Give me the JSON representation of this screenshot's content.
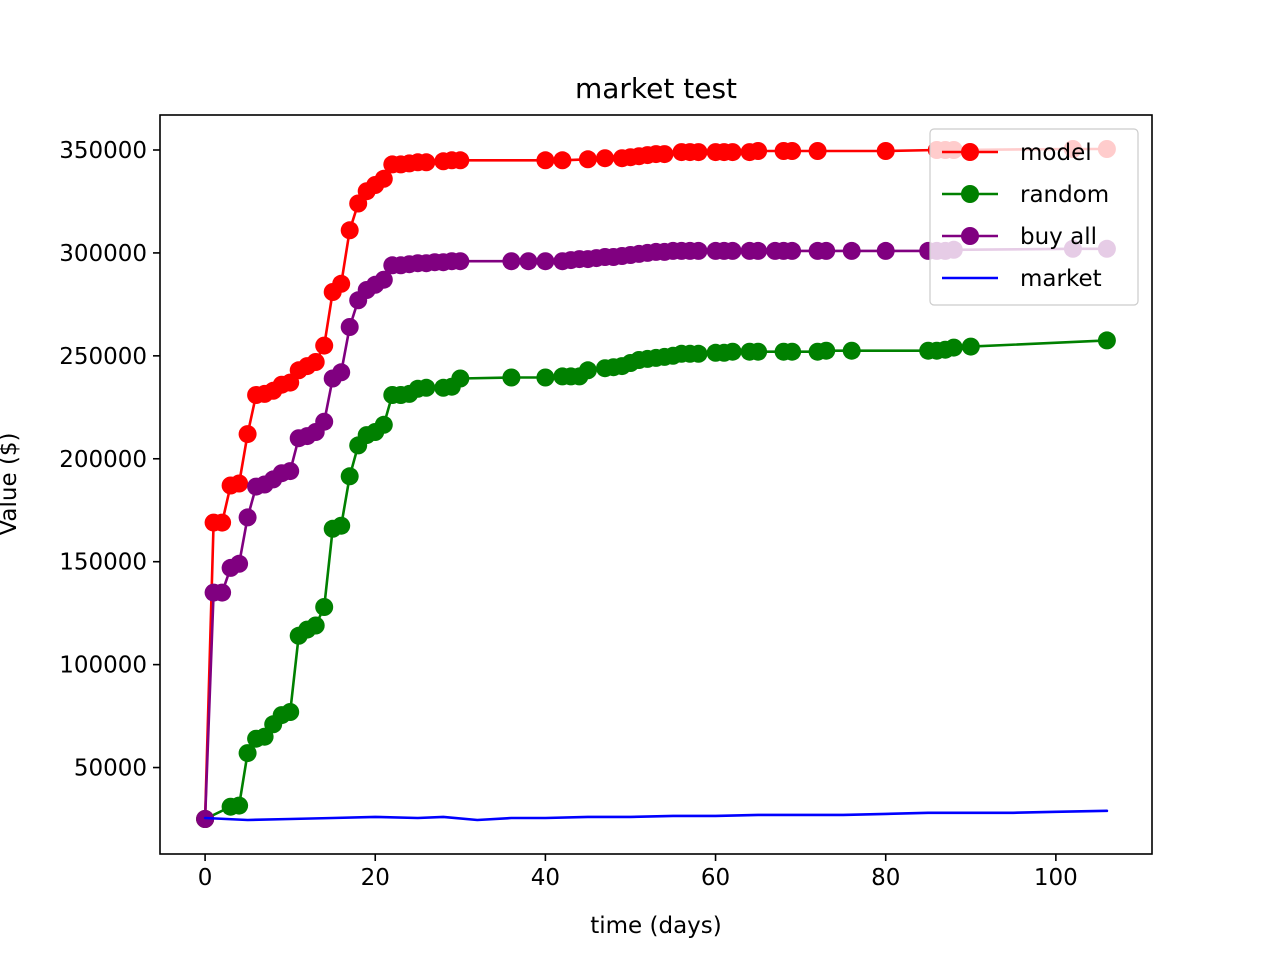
{
  "chart_data": {
    "type": "line",
    "title": "market test",
    "xlabel": "time (days)",
    "ylabel": "Value ($)",
    "xlim": [
      -5.3,
      111.3
    ],
    "ylim": [
      8000,
      367000
    ],
    "xticks": [
      0,
      20,
      40,
      60,
      80,
      100
    ],
    "xtick_labels": [
      "0",
      "20",
      "40",
      "60",
      "80",
      "100"
    ],
    "yticks": [
      50000,
      100000,
      150000,
      200000,
      250000,
      300000,
      350000
    ],
    "ytick_labels": [
      "50000",
      "100000",
      "150000",
      "200000",
      "250000",
      "300000",
      "350000"
    ],
    "grid": false,
    "legend_position": "top-right",
    "series": [
      {
        "name": "model",
        "color": "#ff0000",
        "marker": "circle",
        "x": [
          0,
          1,
          2,
          3,
          4,
          5,
          6,
          7,
          8,
          9,
          10,
          11,
          12,
          13,
          14,
          15,
          16,
          17,
          18,
          19,
          20,
          21,
          22,
          23,
          24,
          25,
          26,
          28,
          29,
          30,
          40,
          42,
          45,
          47,
          49,
          50,
          51,
          52,
          53,
          54,
          56,
          57,
          58,
          60,
          61,
          62,
          64,
          65,
          68,
          69,
          72,
          80,
          86,
          87,
          88,
          102,
          106
        ],
        "y": [
          25000,
          169000,
          169000,
          187000,
          188000,
          212000,
          231000,
          231500,
          233000,
          236000,
          237000,
          243000,
          245000,
          247000,
          255000,
          281000,
          285000,
          311000,
          324000,
          330000,
          333000,
          336000,
          343000,
          343000,
          343500,
          344000,
          344000,
          344500,
          345000,
          345000,
          345000,
          345000,
          345500,
          346000,
          346000,
          346500,
          347000,
          347500,
          348000,
          348000,
          349000,
          349000,
          349000,
          349000,
          349000,
          349000,
          349000,
          349500,
          349500,
          349500,
          349500,
          349500,
          350000,
          350000,
          350000,
          350500,
          350500
        ]
      },
      {
        "name": "random",
        "color": "#008000",
        "marker": "circle",
        "x": [
          0,
          3,
          4,
          5,
          6,
          7,
          8,
          9,
          10,
          11,
          12,
          13,
          14,
          15,
          16,
          17,
          18,
          19,
          20,
          21,
          22,
          23,
          24,
          25,
          26,
          28,
          29,
          30,
          36,
          40,
          42,
          43,
          44,
          45,
          47,
          48,
          49,
          50,
          51,
          52,
          53,
          54,
          55,
          56,
          57,
          58,
          60,
          61,
          62,
          64,
          65,
          68,
          69,
          72,
          73,
          76,
          85,
          86,
          87,
          88,
          90,
          106
        ],
        "y": [
          25000,
          31000,
          31500,
          57000,
          64000,
          65000,
          71000,
          75500,
          77000,
          114000,
          117000,
          119000,
          128000,
          166000,
          167500,
          191500,
          206500,
          211500,
          213000,
          216500,
          231000,
          231000,
          231500,
          234000,
          234500,
          234500,
          235000,
          239000,
          239500,
          239500,
          240000,
          240000,
          240000,
          243000,
          244000,
          244500,
          245000,
          246500,
          248000,
          248500,
          249000,
          249500,
          250000,
          251000,
          251000,
          251000,
          251500,
          251500,
          252000,
          252000,
          252000,
          252000,
          252000,
          252000,
          252500,
          252500,
          252500,
          252500,
          253000,
          254000,
          254500,
          257500
        ]
      },
      {
        "name": "buy all",
        "color": "#800080",
        "marker": "circle",
        "x": [
          0,
          1,
          2,
          3,
          4,
          5,
          6,
          7,
          8,
          9,
          10,
          11,
          12,
          13,
          14,
          15,
          16,
          17,
          18,
          19,
          20,
          21,
          22,
          23,
          24,
          25,
          26,
          27,
          28,
          29,
          30,
          36,
          38,
          40,
          42,
          43,
          44,
          45,
          46,
          47,
          48,
          49,
          50,
          51,
          52,
          53,
          54,
          55,
          56,
          57,
          58,
          60,
          61,
          62,
          64,
          65,
          67,
          68,
          69,
          72,
          73,
          76,
          80,
          85,
          86,
          87,
          88,
          102,
          106
        ],
        "y": [
          25000,
          135000,
          135000,
          147000,
          149000,
          171500,
          186500,
          187500,
          190000,
          193000,
          194000,
          210000,
          211000,
          213000,
          218000,
          239000,
          242000,
          264000,
          277000,
          282000,
          284500,
          287000,
          294000,
          294000,
          294500,
          295000,
          295000,
          295500,
          295500,
          296000,
          296000,
          296000,
          296000,
          296000,
          296000,
          296500,
          297000,
          297000,
          297500,
          298000,
          298000,
          298500,
          299000,
          299500,
          300000,
          300500,
          300500,
          301000,
          301000,
          301000,
          301000,
          301000,
          301000,
          301000,
          301000,
          301000,
          301000,
          301000,
          301000,
          301000,
          301000,
          301000,
          301000,
          301000,
          301000,
          301000,
          301500,
          302000,
          302000
        ]
      },
      {
        "name": "market",
        "color": "#0000ff",
        "marker": "none",
        "x": [
          0,
          5,
          10,
          15,
          20,
          25,
          28,
          32,
          36,
          40,
          45,
          50,
          55,
          60,
          65,
          70,
          75,
          80,
          85,
          90,
          95,
          100,
          106
        ],
        "y": [
          25500,
          24500,
          25000,
          25500,
          26000,
          25500,
          26000,
          24500,
          25500,
          25500,
          26000,
          26000,
          26500,
          26500,
          27000,
          27000,
          27000,
          27500,
          28000,
          28000,
          28000,
          28500,
          29000
        ]
      }
    ]
  }
}
